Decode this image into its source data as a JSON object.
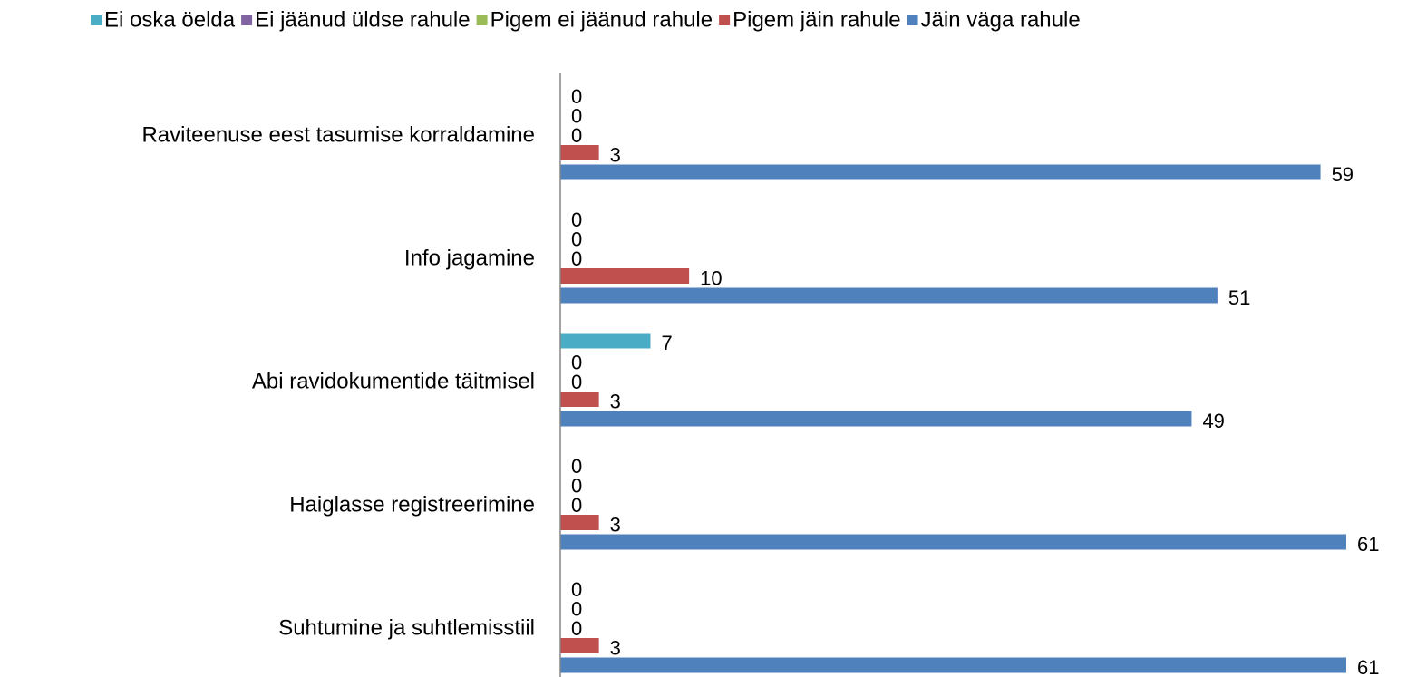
{
  "chart_data": {
    "type": "bar",
    "orientation": "horizontal",
    "categories": [
      "Raviteenuse eest tasumise korraldamine",
      "Info jagamine",
      "Abi ravidokumentide täitmisel",
      "Haiglasse registreerimine",
      "Suhtumine ja suhtlemisstiil"
    ],
    "series": [
      {
        "name": "Ei oska öelda",
        "color": "#4bacc6",
        "values": [
          0,
          0,
          7,
          0,
          0
        ]
      },
      {
        "name": "Ei jäänud üldse rahule",
        "color": "#8064a2",
        "values": [
          0,
          0,
          0,
          0,
          0
        ]
      },
      {
        "name": "Pigem ei jäänud rahule",
        "color": "#9bbb59",
        "values": [
          0,
          0,
          0,
          0,
          0
        ]
      },
      {
        "name": "Pigem jäin rahule",
        "color": "#c0504d",
        "values": [
          3,
          10,
          3,
          3,
          3
        ]
      },
      {
        "name": "Jäin väga rahule",
        "color": "#4f81bd",
        "values": [
          59,
          51,
          49,
          61,
          61
        ]
      }
    ],
    "legend": "top"
  }
}
